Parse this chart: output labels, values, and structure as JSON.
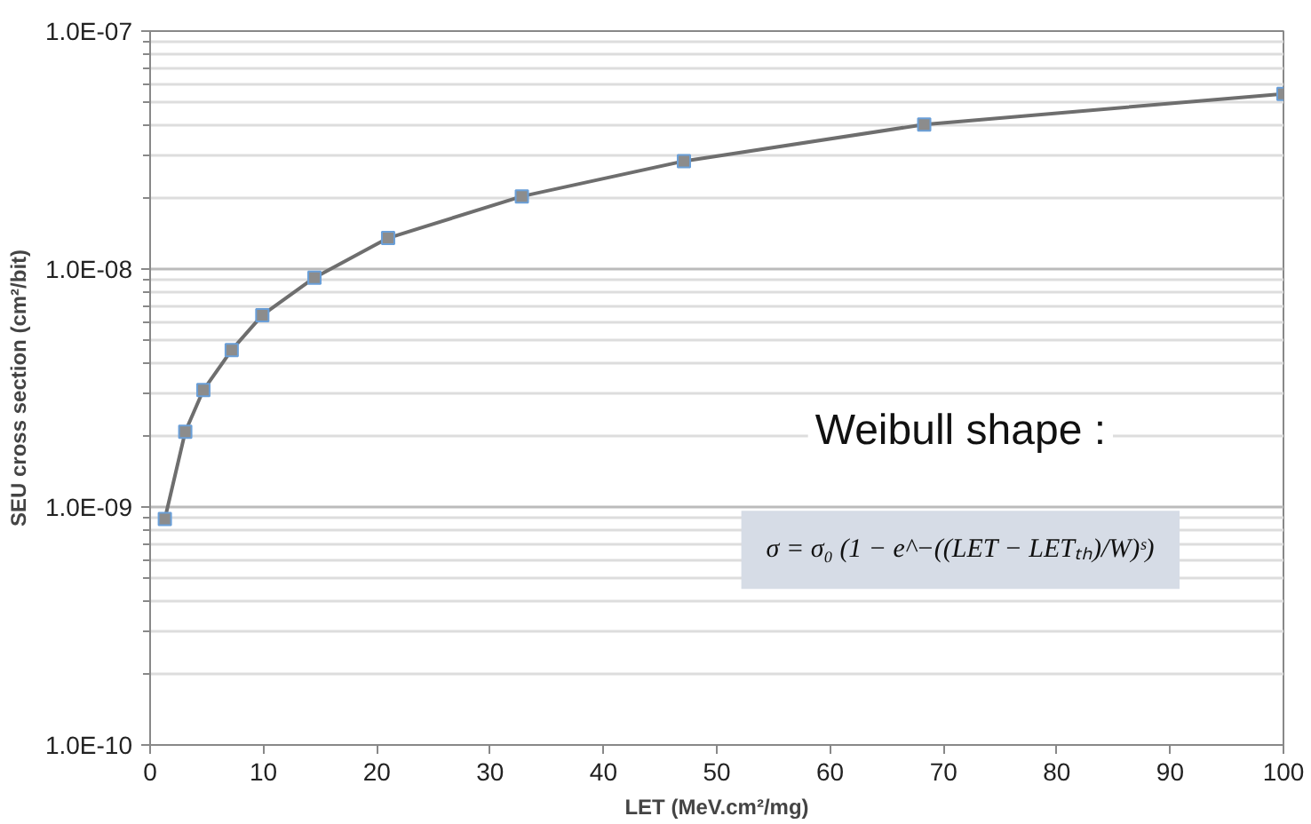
{
  "chart_data": {
    "type": "line",
    "xlabel": "LET (MeV.cm²/mg)",
    "ylabel": "SEU cross section (cm²/bit)",
    "log": "y",
    "grid": "y",
    "marker": "square",
    "line_style": "solid",
    "xlim": [
      0,
      100
    ],
    "xticks": [
      0,
      10,
      20,
      30,
      40,
      50,
      60,
      70,
      80,
      90,
      100
    ],
    "ylim": [
      1e-10,
      1e-07
    ],
    "yticks": [
      {
        "value": 1e-10,
        "label": "1.0E-10"
      },
      {
        "value": 1e-09,
        "label": "1.0E-09"
      },
      {
        "value": 1e-08,
        "label": "1.0E-08"
      },
      {
        "value": 1e-07,
        "label": "1.0E-07"
      }
    ],
    "x": [
      1.3,
      3.1,
      4.7,
      7.2,
      9.9,
      14.5,
      21.0,
      32.8,
      47.1,
      68.3,
      100
    ],
    "series": [
      {
        "color": "#6e6e6e",
        "values": [
          8.9e-10,
          2.07e-09,
          3.1e-09,
          4.57e-09,
          6.4e-09,
          9.2e-09,
          1.35e-08,
          2.02e-08,
          2.84e-08,
          4.05e-08,
          5.45e-08
        ]
      }
    ],
    "annotations": [
      "Weibull shape :",
      "σ = σ₀ (1 − e^−((LET − LETₜₕ)/W)ˢ)"
    ]
  }
}
